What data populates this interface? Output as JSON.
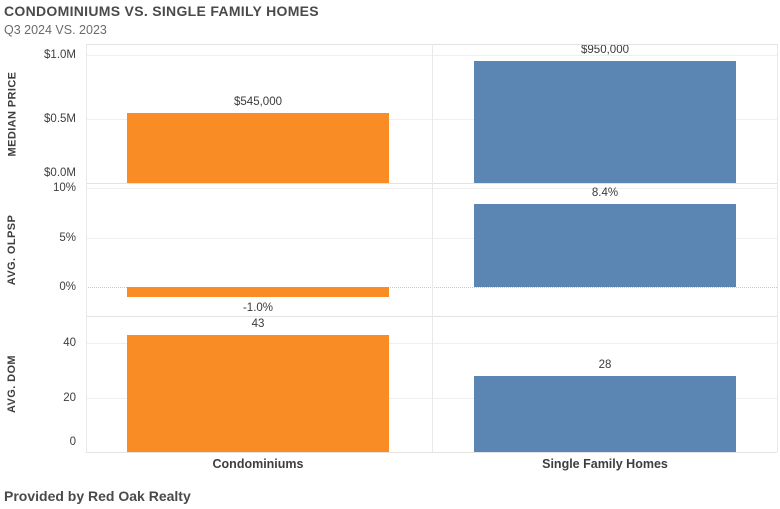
{
  "header": {
    "title": "CONDOMINIUMS VS. SINGLE FAMILY HOMES",
    "subtitle": "Q3 2024 VS. 2023"
  },
  "footer": {
    "credit": "Provided by Red Oak Realty"
  },
  "colors": {
    "condominiums": "#F98C25",
    "single_family_homes": "#5B86B4",
    "gridline": "#EFEFEF",
    "zero_line_dotted": "#C8C8C8",
    "panel_border": "#E2E2E2",
    "text_dark": "#3E3E3E"
  },
  "chart_data": {
    "type": "bar",
    "title": "CONDOMINIUMS VS. SINGLE FAMILY HOMES",
    "subtitle": "Q3 2024 VS. 2023",
    "categories": [
      "Condominiums",
      "Single Family Homes"
    ],
    "legend_position": "none",
    "grid": true,
    "panels": [
      {
        "metric": "MEDIAN PRICE",
        "values": [
          545000,
          950000
        ],
        "value_labels": [
          "$545,000",
          "$950,000"
        ],
        "ticks": [
          {
            "value": 1000000,
            "label": "$1.0M"
          },
          {
            "value": 500000,
            "label": "$0.5M"
          },
          {
            "value": 0,
            "label": "$0.0M"
          }
        ],
        "ymin": 0,
        "ymax": 1086000
      },
      {
        "metric": "AVG. OLPSP",
        "values": [
          -1.0,
          8.4
        ],
        "value_labels": [
          "-1.0%",
          "8.4%"
        ],
        "ticks": [
          {
            "value": 10,
            "label": "10%"
          },
          {
            "value": 5,
            "label": "5%"
          },
          {
            "value": 0,
            "label": "0%",
            "dotted": true
          }
        ],
        "ymin": -2.9,
        "ymax": 10.5
      },
      {
        "metric": "AVG. DOM",
        "values": [
          43,
          28
        ],
        "value_labels": [
          "43",
          "28"
        ],
        "ticks": [
          {
            "value": 40,
            "label": "40"
          },
          {
            "value": 20,
            "label": "20"
          },
          {
            "value": 0,
            "label": "0"
          }
        ],
        "ymin": 0,
        "ymax": 50
      }
    ]
  }
}
